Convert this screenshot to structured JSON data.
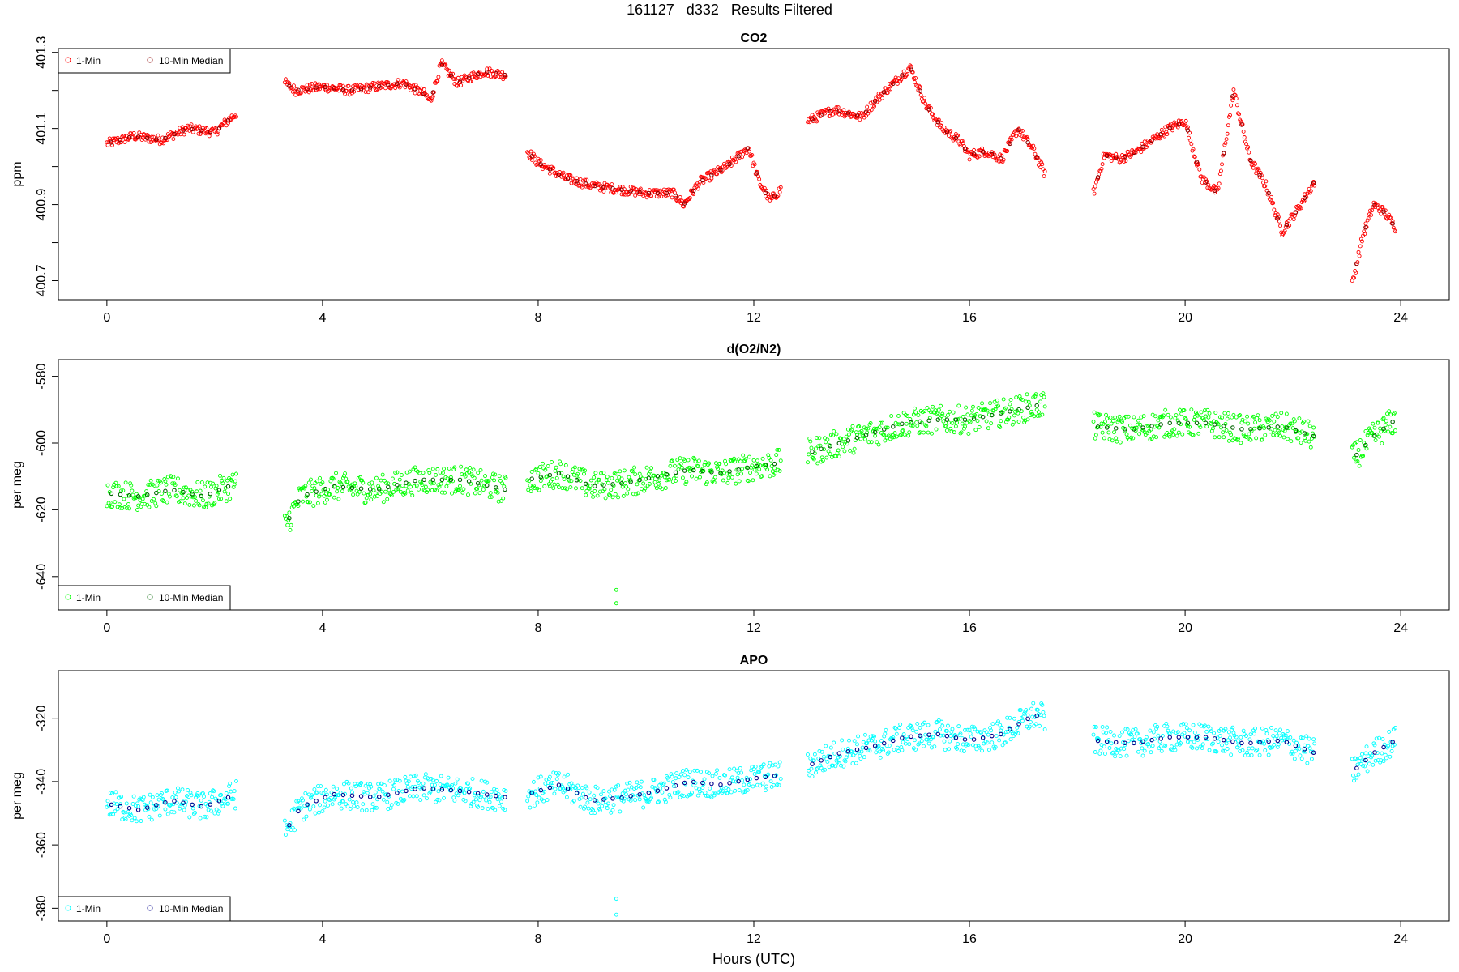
{
  "figure": {
    "title": "161127   d332   Results Filtered",
    "xlabel": "Hours (UTC)"
  },
  "chart_data": [
    {
      "type": "scatter",
      "title": "CO2",
      "ylabel": "ppm",
      "xlim": [
        -0.9,
        24.9
      ],
      "ylim": [
        400.65,
        401.31
      ],
      "xticks": [
        0,
        4,
        8,
        12,
        16,
        20,
        24
      ],
      "yticks_labeled": [
        400.7,
        400.9,
        401.1,
        401.3
      ],
      "yticks_minor": [
        400.8,
        401.0,
        401.2
      ],
      "legend_position": "top-left",
      "series": [
        {
          "name": "1-Min",
          "color": "#ff0000",
          "segments": [
            {
              "x": [
                0.0,
                0.5,
                1.0,
                1.5,
                2.0,
                2.4
              ],
              "y": [
                401.06,
                401.08,
                401.07,
                401.1,
                401.09,
                401.14
              ]
            },
            {
              "x": [
                3.3,
                3.5,
                4.0,
                4.5,
                5.0,
                5.5,
                5.9,
                6.0,
                6.2,
                6.5,
                7.0,
                7.4
              ],
              "y": [
                401.22,
                401.2,
                401.21,
                401.2,
                401.21,
                401.22,
                401.19,
                401.17,
                401.27,
                401.22,
                401.25,
                401.24
              ]
            },
            {
              "x": [
                7.8,
                8.0,
                8.5,
                9.0,
                9.5,
                10.0,
                10.5,
                10.7,
                11.0,
                11.5,
                11.9,
                12.1,
                12.3,
                12.5
              ],
              "y": [
                401.04,
                401.01,
                400.97,
                400.95,
                400.94,
                400.93,
                400.93,
                400.9,
                400.96,
                401.0,
                401.05,
                400.96,
                400.91,
                400.94
              ]
            },
            {
              "x": [
                13.0,
                13.5,
                14.0,
                14.3,
                14.6,
                14.9,
                15.2,
                15.5,
                15.8,
                16.0,
                16.3,
                16.6,
                16.9,
                17.2,
                17.4
              ],
              "y": [
                401.12,
                401.15,
                401.13,
                401.18,
                401.22,
                401.26,
                401.16,
                401.1,
                401.07,
                401.03,
                401.04,
                401.02,
                401.1,
                401.04,
                400.98
              ]
            },
            {
              "x": [
                18.3,
                18.5,
                18.8,
                19.1,
                19.4,
                19.7,
                20.0,
                20.3,
                20.6,
                20.9,
                21.2,
                21.5,
                21.8,
                22.1,
                22.4
              ],
              "y": [
                400.93,
                401.03,
                401.02,
                401.04,
                401.07,
                401.1,
                401.12,
                400.97,
                400.93,
                401.2,
                401.02,
                400.95,
                400.83,
                400.89,
                400.96
              ]
            },
            {
              "x": [
                23.1,
                23.3,
                23.5,
                23.7,
                23.9
              ],
              "y": [
                400.69,
                400.82,
                400.9,
                400.88,
                400.84
              ]
            }
          ]
        },
        {
          "name": "10-Min Median",
          "color": "#8b0000",
          "style": "every tenth point, darker"
        }
      ],
      "legend": [
        "1-Min",
        "10-Min Median"
      ]
    },
    {
      "type": "scatter",
      "title": "d(O2/N2)",
      "ylabel": "per meg",
      "xlim": [
        -0.9,
        24.9
      ],
      "ylim": [
        -650,
        -575
      ],
      "xticks": [
        0,
        4,
        8,
        12,
        16,
        20,
        24
      ],
      "yticks_labeled": [
        -640,
        -620,
        -600,
        -580
      ],
      "legend_position": "bottom-left",
      "series": [
        {
          "name": "1-Min",
          "color": "#00ff00",
          "segments": [
            {
              "x": [
                0.0,
                0.6,
                1.2,
                1.8,
                2.4
              ],
              "y": [
                -615,
                -616,
                -614,
                -616,
                -612
              ]
            },
            {
              "x": [
                3.3,
                3.6,
                4.2,
                5.0,
                5.8,
                6.6,
                7.4
              ],
              "y": [
                -625,
                -616,
                -613,
                -614,
                -611,
                -611,
                -614
              ]
            },
            {
              "x": [
                7.8,
                8.4,
                9.0,
                9.6,
                10.2,
                10.8,
                11.4,
                12.0,
                12.5
              ],
              "y": [
                -611,
                -609,
                -613,
                -612,
                -610,
                -608,
                -609,
                -607,
                -606
              ]
            },
            {
              "x": [
                13.0,
                13.6,
                14.2,
                14.8,
                15.4,
                16.0,
                16.6,
                17.2,
                17.4
              ],
              "y": [
                -603,
                -600,
                -597,
                -594,
                -593,
                -593,
                -591,
                -589,
                -588
              ]
            },
            {
              "x": [
                18.3,
                19.0,
                19.7,
                20.4,
                21.1,
                21.8,
                22.4
              ],
              "y": [
                -595,
                -596,
                -594,
                -594,
                -596,
                -595,
                -598
              ]
            },
            {
              "x": [
                23.1,
                23.5,
                23.9
              ],
              "y": [
                -605,
                -598,
                -593
              ]
            }
          ],
          "outliers": [
            {
              "x": 9.45,
              "y": -644
            },
            {
              "x": 9.45,
              "y": -648
            }
          ]
        },
        {
          "name": "10-Min Median",
          "color": "#006400",
          "style": "every tenth point, darker"
        }
      ],
      "legend": [
        "1-Min",
        "10-Min Median"
      ]
    },
    {
      "type": "scatter",
      "title": "APO",
      "ylabel": "per meg",
      "xlim": [
        -0.9,
        24.9
      ],
      "ylim": [
        -384,
        -305
      ],
      "xticks": [
        0,
        4,
        8,
        12,
        16,
        20,
        24
      ],
      "yticks_labeled": [
        -380,
        -360,
        -340,
        -320
      ],
      "legend_position": "bottom-left",
      "series": [
        {
          "name": "1-Min",
          "color": "#00ffff",
          "segments": [
            {
              "x": [
                0.0,
                0.6,
                1.2,
                1.8,
                2.4
              ],
              "y": [
                -347,
                -349,
                -346,
                -348,
                -344
              ]
            },
            {
              "x": [
                3.3,
                3.6,
                4.2,
                5.0,
                5.8,
                6.6,
                7.4
              ],
              "y": [
                -356,
                -348,
                -344,
                -345,
                -342,
                -343,
                -345
              ]
            },
            {
              "x": [
                7.8,
                8.4,
                9.0,
                9.6,
                10.2,
                10.8,
                11.4,
                12.0,
                12.5
              ],
              "y": [
                -344,
                -341,
                -346,
                -345,
                -343,
                -340,
                -341,
                -339,
                -338
              ]
            },
            {
              "x": [
                13.0,
                13.6,
                14.2,
                14.8,
                15.4,
                16.0,
                16.6,
                17.2,
                17.4
              ],
              "y": [
                -335,
                -331,
                -329,
                -326,
                -325,
                -327,
                -325,
                -319,
                -320
              ]
            },
            {
              "x": [
                18.3,
                19.0,
                19.7,
                20.4,
                21.1,
                21.8,
                22.4
              ],
              "y": [
                -327,
                -328,
                -326,
                -326,
                -328,
                -327,
                -331
              ]
            },
            {
              "x": [
                23.1,
                23.5,
                23.9
              ],
              "y": [
                -337,
                -331,
                -327
              ]
            }
          ],
          "outliers": [
            {
              "x": 9.45,
              "y": -377
            },
            {
              "x": 9.45,
              "y": -382
            }
          ]
        },
        {
          "name": "10-Min Median",
          "color": "#00008b",
          "style": "every tenth point, darker"
        }
      ],
      "legend": [
        "1-Min",
        "10-Min Median"
      ]
    }
  ]
}
